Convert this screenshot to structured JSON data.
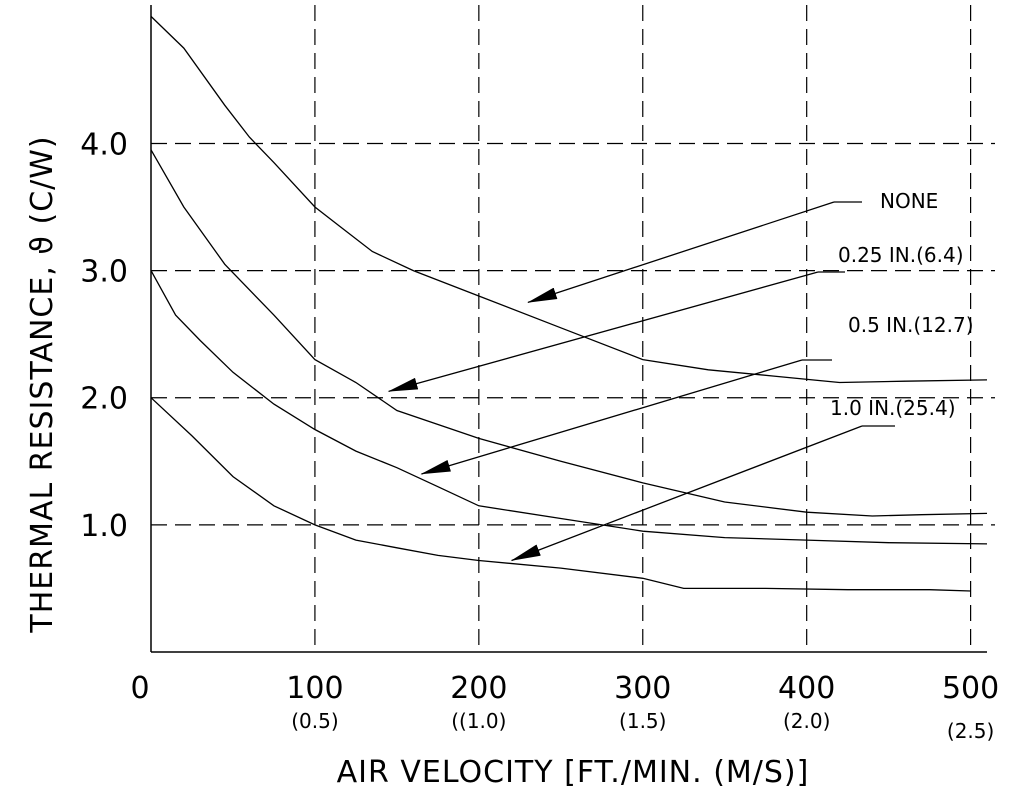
{
  "chart_data": {
    "type": "line",
    "xlabel": "AIR VELOCITY [FT./MIN. (M/S)]",
    "ylabel": "THERMAL RESISTANCE, ϑ (C/W)",
    "xlim": [
      0,
      510
    ],
    "ylim": [
      0,
      5.05
    ],
    "x_ticks": [
      {
        "value": 0,
        "label": "0",
        "sublabel": ""
      },
      {
        "value": 100,
        "label": "100",
        "sublabel": "(0.5)"
      },
      {
        "value": 200,
        "label": "200",
        "sublabel": "((1.0)"
      },
      {
        "value": 300,
        "label": "300",
        "sublabel": "(1.5)"
      },
      {
        "value": 400,
        "label": "400",
        "sublabel": "(2.0)"
      },
      {
        "value": 500,
        "label": "500",
        "sublabel": "(2.5)"
      }
    ],
    "y_ticks": [
      {
        "value": 1,
        "label": "1.0"
      },
      {
        "value": 2,
        "label": "2.0"
      },
      {
        "value": 3,
        "label": "3.0"
      },
      {
        "value": 4,
        "label": "4.0"
      }
    ],
    "grid": "dashed",
    "series": [
      {
        "name": "NONE",
        "x": [
          0,
          20,
          45,
          60,
          75,
          100,
          115,
          135,
          160,
          200,
          250,
          300,
          340,
          380,
          420,
          460,
          510
        ],
        "y": [
          5.0,
          4.75,
          4.3,
          4.05,
          3.85,
          3.5,
          3.35,
          3.15,
          3.0,
          2.8,
          2.55,
          2.3,
          2.22,
          2.17,
          2.12,
          2.13,
          2.14
        ]
      },
      {
        "name": "0.25 IN.(6.4)",
        "x": [
          0,
          20,
          45,
          75,
          100,
          125,
          150,
          200,
          250,
          300,
          350,
          400,
          440,
          470,
          510
        ],
        "y": [
          3.95,
          3.5,
          3.05,
          2.65,
          2.3,
          2.12,
          1.9,
          1.68,
          1.5,
          1.33,
          1.18,
          1.1,
          1.07,
          1.08,
          1.09
        ]
      },
      {
        "name": "0.5 IN.(12.7)",
        "x": [
          0,
          15,
          30,
          50,
          75,
          100,
          125,
          150,
          175,
          200,
          250,
          300,
          350,
          400,
          450,
          510
        ],
        "y": [
          3.0,
          2.65,
          2.45,
          2.2,
          1.95,
          1.75,
          1.58,
          1.45,
          1.3,
          1.15,
          1.05,
          0.95,
          0.9,
          0.88,
          0.86,
          0.85
        ]
      },
      {
        "name": "1.0 IN.(25.4)",
        "x": [
          0,
          25,
          50,
          75,
          100,
          125,
          150,
          175,
          200,
          250,
          300,
          325,
          375,
          425,
          475,
          500
        ],
        "y": [
          2.0,
          1.7,
          1.38,
          1.15,
          1.0,
          0.88,
          0.82,
          0.76,
          0.72,
          0.66,
          0.58,
          0.5,
          0.5,
          0.49,
          0.49,
          0.48
        ]
      }
    ],
    "annotations": [
      {
        "text": "NONE",
        "series": "NONE",
        "arrow_to": [
          230,
          2.75
        ]
      },
      {
        "text": "0.25 IN.(6.4)",
        "series": "0.25 IN.(6.4)",
        "arrow_to": [
          145,
          2.05
        ]
      },
      {
        "text": "0.5 IN.(12.7)",
        "series": "0.5 IN.(12.7)",
        "arrow_to": [
          165,
          1.4
        ]
      },
      {
        "text": "1.0 IN.(25.4)",
        "series": "1.0 IN.(25.4)",
        "arrow_to": [
          220,
          0.72
        ]
      }
    ]
  }
}
